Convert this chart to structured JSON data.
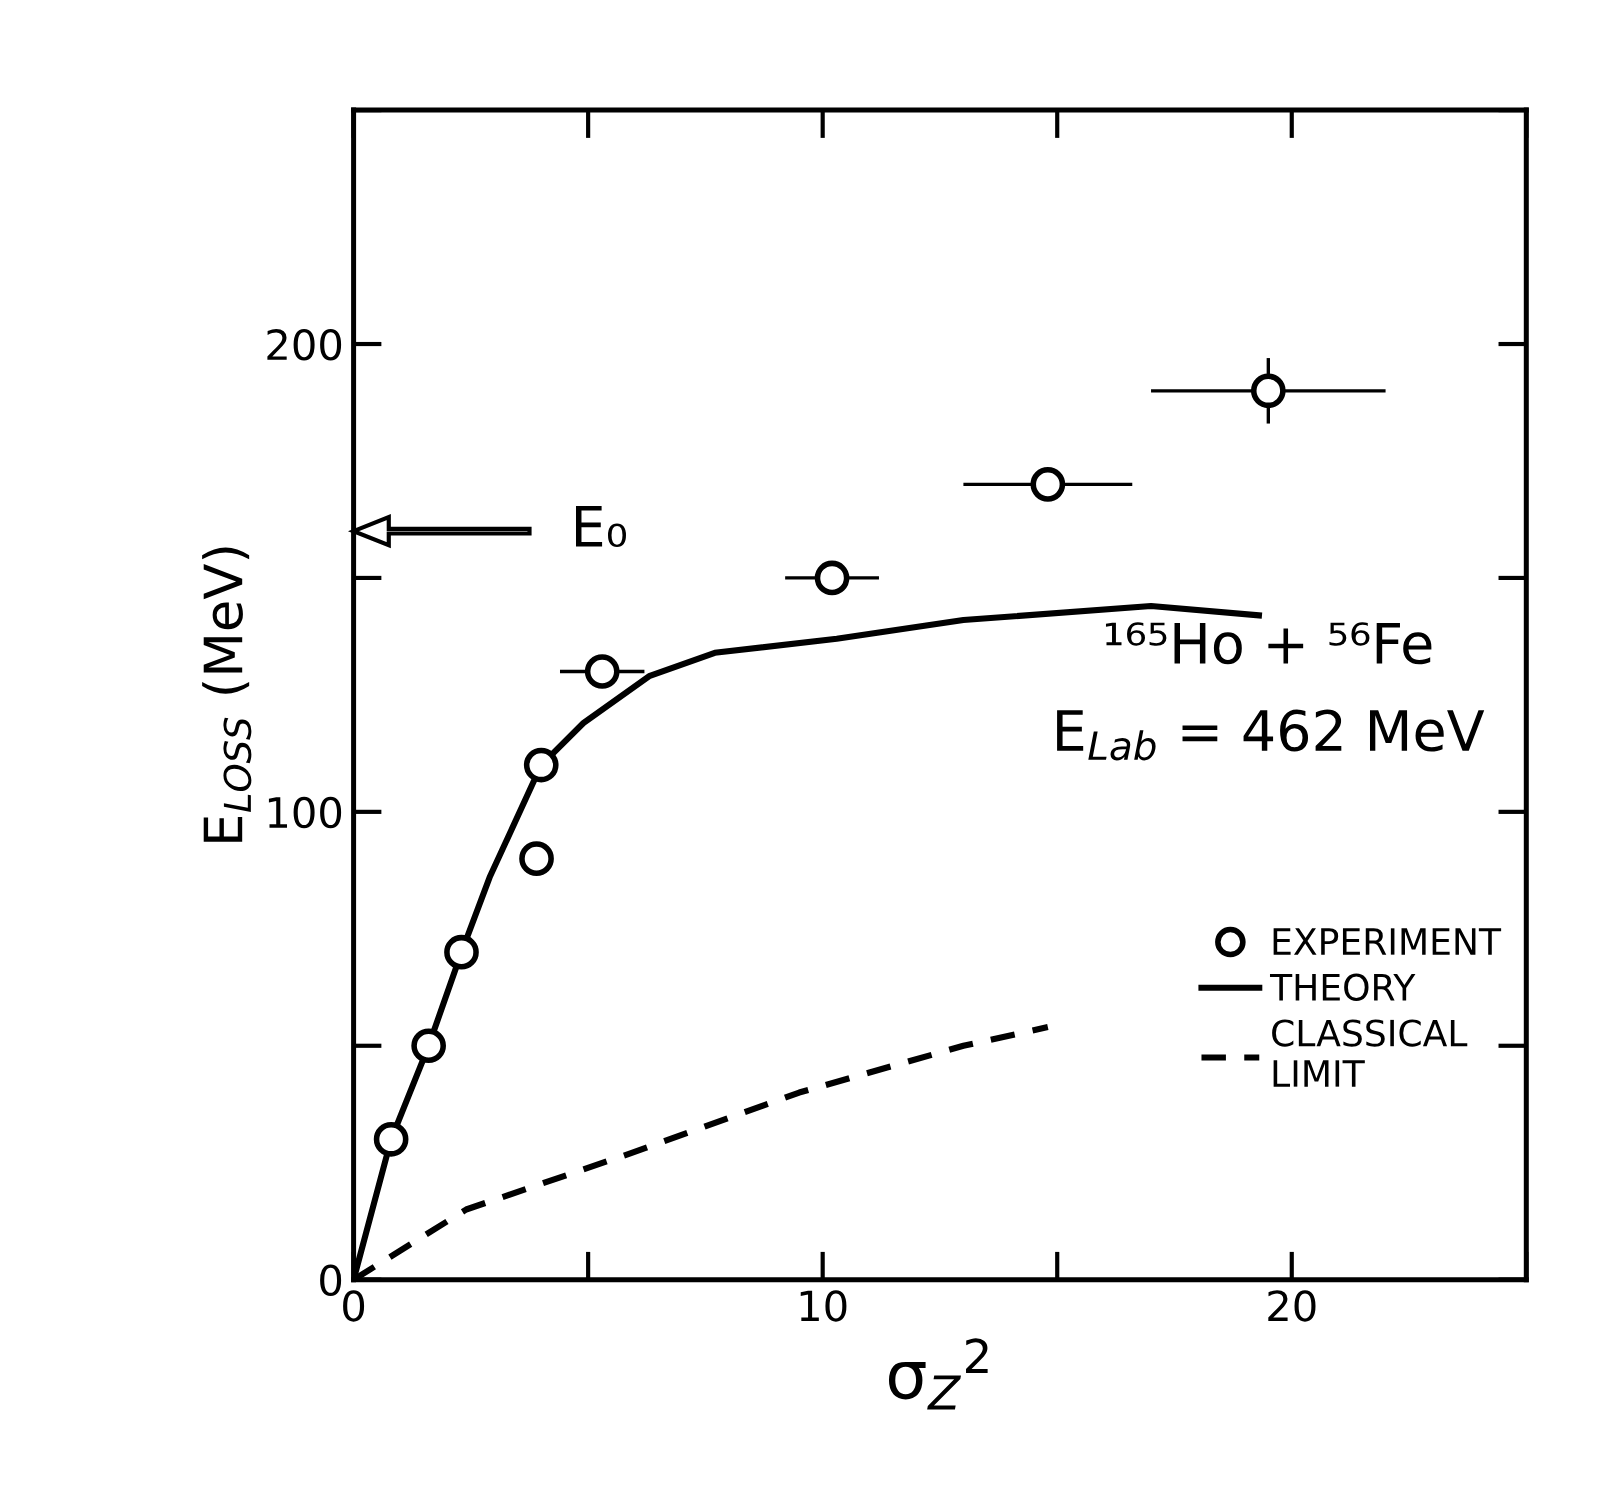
{
  "chart_data": {
    "type": "scatter",
    "xlabel": "σ$_{Z}$$^{2}$",
    "ylabel": "E$_{LOSS}$ (MeV)",
    "xlim": [
      0,
      25
    ],
    "ylim": [
      0,
      250
    ],
    "xticks": [
      0,
      {
        "value": 5,
        "label": null
      },
      10,
      {
        "value": 15,
        "label": null
      },
      20,
      {
        "value": 25,
        "label": null
      }
    ],
    "yticks": [
      0,
      {
        "value": 50,
        "label": null
      },
      100,
      {
        "value": 150,
        "label": null
      },
      200,
      {
        "value": 250,
        "label": null
      }
    ],
    "grid": false,
    "legend": "center right",
    "series": [
      {
        "name": "EXPERIMENT",
        "marker": "circle",
        "color": "#000000",
        "x": [
          0.8,
          1.6,
          2.3,
          3.9,
          4.0,
          5.3,
          10.2,
          14.8,
          19.5
        ],
        "values": [
          30,
          50,
          70,
          90,
          110,
          130,
          150,
          170,
          190
        ],
        "xerrors": [
          null,
          null,
          null,
          null,
          null,
          0.9,
          1.0,
          1.8,
          2.5
        ],
        "errors": [
          null,
          null,
          null,
          null,
          null,
          null,
          null,
          2.5,
          7
        ]
      },
      {
        "name": "THEORY",
        "type": "line",
        "line_style": "solid",
        "color": "#000000",
        "x": [
          0,
          0.8,
          1.6,
          2.3,
          2.9,
          4.0,
          4.9,
          6.3,
          7.7,
          10.3,
          13.0,
          17.0,
          19.3
        ],
        "values": [
          0,
          30,
          50,
          70,
          86,
          110,
          119,
          129,
          134,
          137,
          141,
          144,
          142
        ]
      },
      {
        "name": "CLASSICAL\nLIMIT",
        "type": "line",
        "line_style": "dashed",
        "color": "#000000",
        "x": [
          0,
          2.4,
          5.9,
          9.5,
          13.0,
          14.8
        ],
        "values": [
          0,
          15,
          27,
          40,
          50,
          54
        ]
      }
    ],
    "annotations": [
      "E₀",
      "¹⁶⁵Ho + ⁵⁶Fe",
      "E$_{Lab}$ = 462 MeV"
    ]
  }
}
